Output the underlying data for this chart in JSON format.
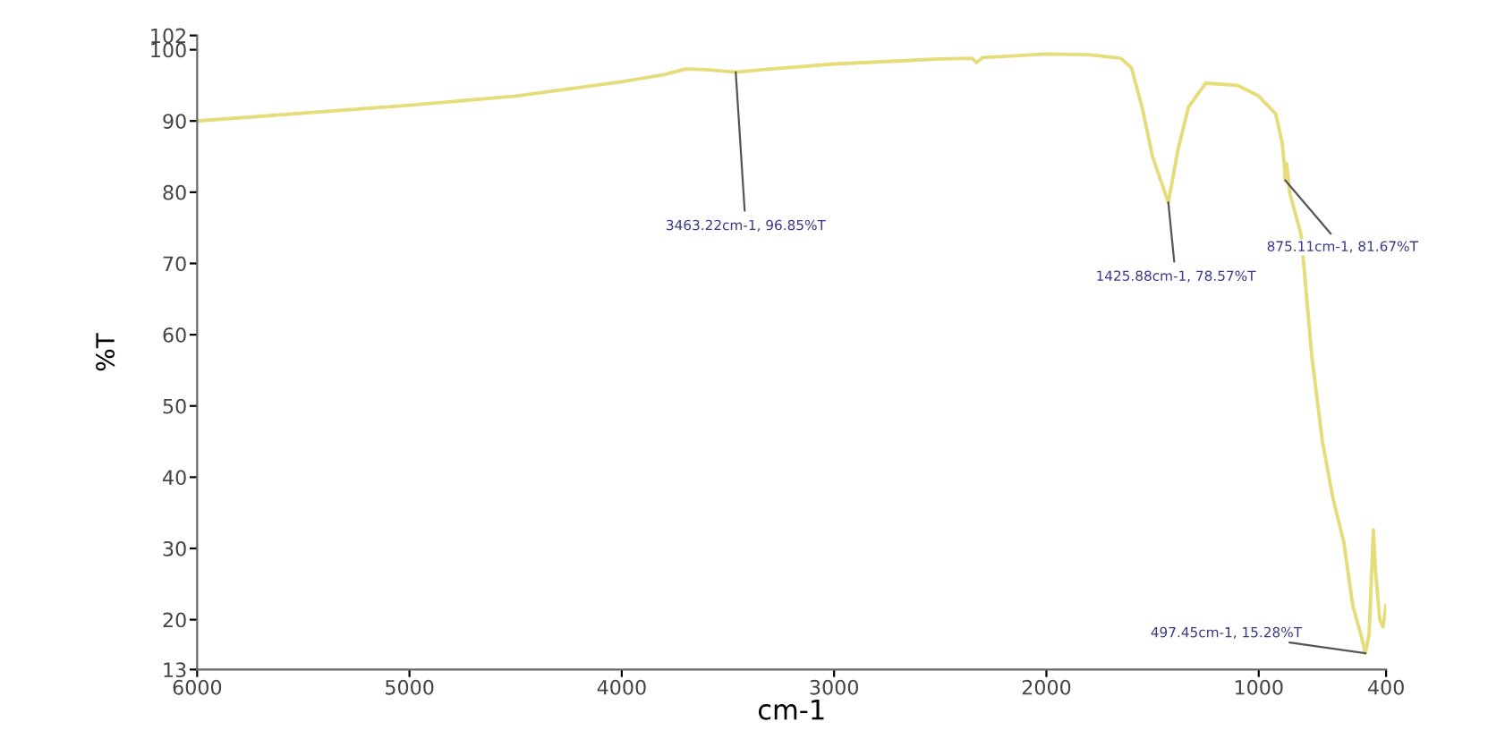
{
  "chart_data": {
    "type": "line",
    "xlabel": "cm-1",
    "ylabel": "%T",
    "xlim": [
      6000,
      400
    ],
    "ylim": [
      13,
      102
    ],
    "xticks": [
      6000,
      5000,
      4000,
      3000,
      2000,
      1000,
      400
    ],
    "yticks": [
      13,
      20,
      30,
      40,
      50,
      60,
      70,
      80,
      90,
      100,
      102
    ],
    "series": [
      {
        "color": "#e6dc7a",
        "x": [
          6000,
          5000,
          4500,
          4000,
          3800,
          3700,
          3600,
          3463.22,
          3300,
          3000,
          2500,
          2350,
          2330,
          2300,
          2000,
          1800,
          1650,
          1600,
          1550,
          1500,
          1425.88,
          1380,
          1330,
          1250,
          1100,
          1000,
          920,
          890,
          880,
          875.11,
          868,
          855,
          800,
          750,
          700,
          650,
          600,
          557,
          520,
          497.45,
          480,
          460,
          450,
          430,
          415,
          400
        ],
        "values": [
          90,
          92.2,
          93.5,
          95.5,
          96.5,
          97.3,
          97.2,
          96.85,
          97.3,
          98,
          98.7,
          98.8,
          98.2,
          98.9,
          99.4,
          99.3,
          98.8,
          97.5,
          92,
          85,
          78.57,
          86,
          92,
          95.3,
          95,
          93.5,
          91,
          87,
          84,
          81.67,
          84,
          80,
          74,
          57,
          45,
          37,
          31,
          22,
          18,
          15.28,
          18,
          32.6,
          27,
          20,
          19,
          22
        ]
      }
    ],
    "annotations": [
      {
        "text": "3463.22cm-1, 96.85%T",
        "x": 3463.22,
        "y": 96.85
      },
      {
        "text": "1425.88cm-1, 78.57%T",
        "x": 1425.88,
        "y": 78.57
      },
      {
        "text": "875.11cm-1, 81.67%T",
        "x": 875.11,
        "y": 81.67
      },
      {
        "text": "497.45cm-1, 15.28%T",
        "x": 497.45,
        "y": 15.28
      }
    ],
    "grid": false,
    "legend": false
  }
}
